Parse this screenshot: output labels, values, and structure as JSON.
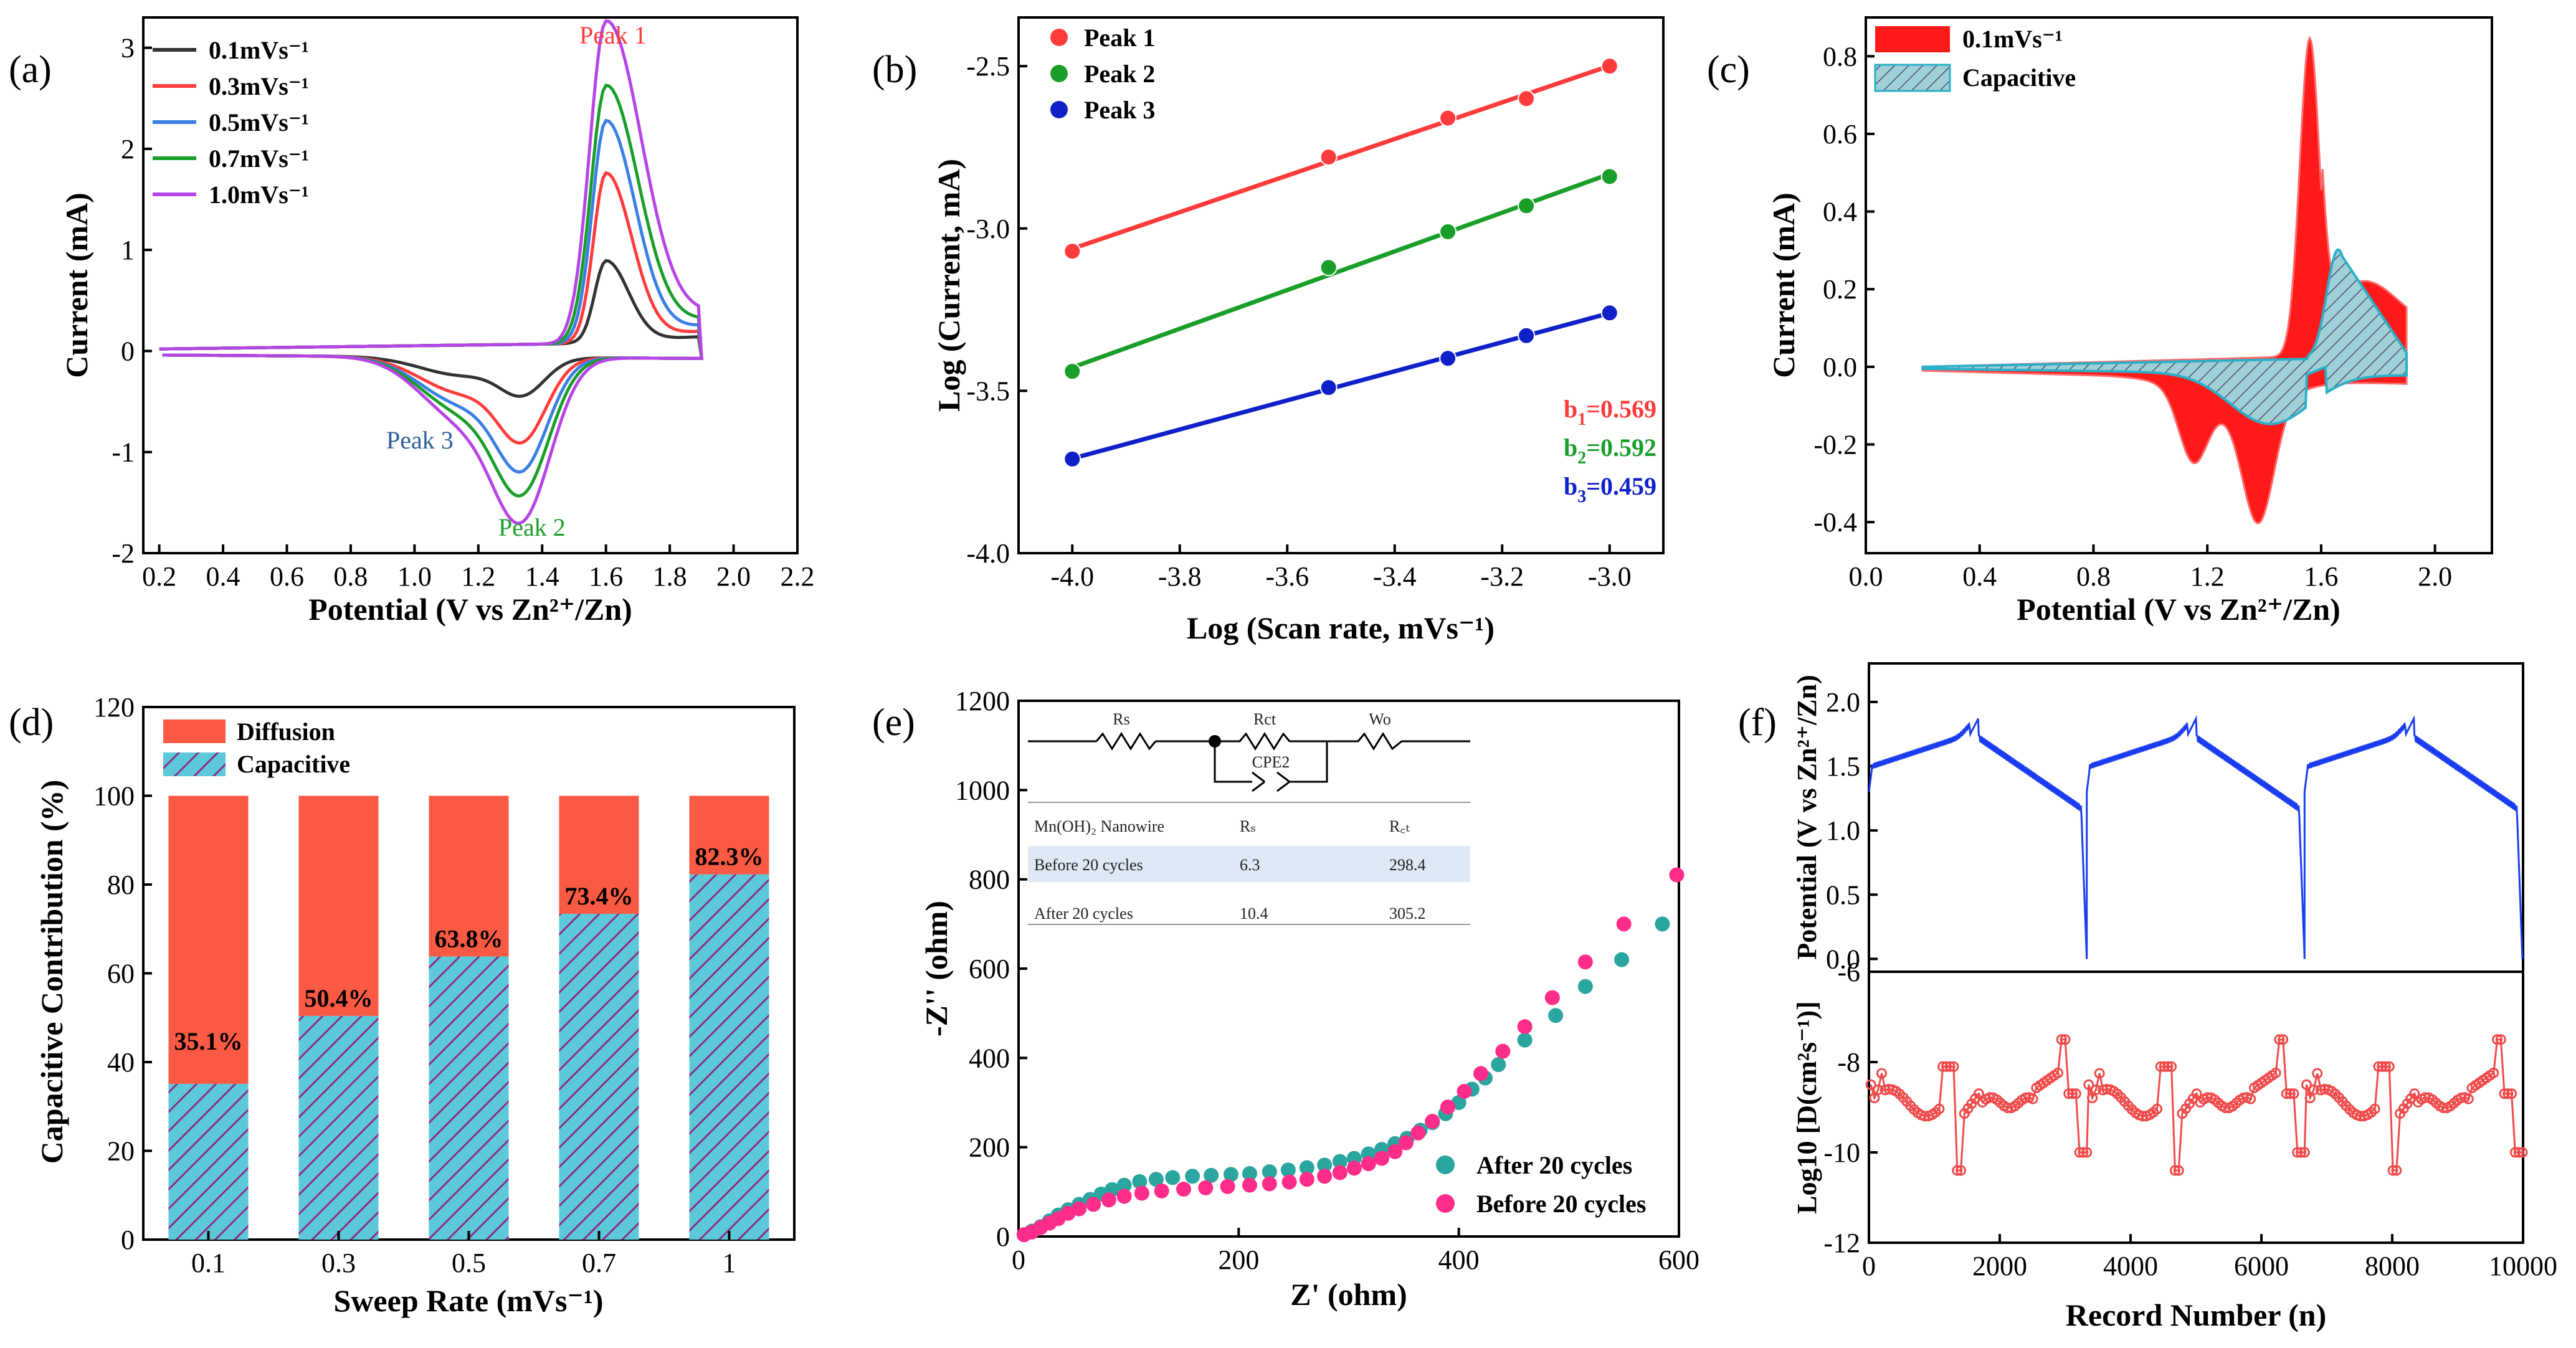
{
  "panel_labels": [
    "(a)",
    "(b)",
    "(c)",
    "(d)",
    "(e)",
    "(f)"
  ],
  "colors": {
    "red": "#ff3b3b",
    "green": "#1a9e2a",
    "blue": "#1020c8",
    "teal": "#2aa5a0",
    "pink": "#ff2d8a",
    "purple": "#b545e6",
    "sky": "#3a7fe6",
    "black": "#333333",
    "bar_red": "#fa5a43",
    "bar_cyan": "#5cc8d8",
    "line_blue": "#1a3cf0"
  },
  "chart_data": [
    {
      "panel": "a",
      "type": "line",
      "xlabel": "Potential (V vs Zn²⁺/Zn)",
      "ylabel": "Current (mA)",
      "xlim": [
        0.15,
        2.2
      ],
      "ylim": [
        -2,
        3.3
      ],
      "xticks": [
        0.2,
        0.4,
        0.6,
        0.8,
        1.0,
        1.2,
        1.4,
        1.6,
        1.8,
        2.0,
        2.2
      ],
      "xtick_labels": [
        "0.2",
        "0.4",
        "0.6",
        "0.8",
        "1.0",
        "1.2",
        "1.4",
        "1.6",
        "1.8",
        "2.0",
        "2.2"
      ],
      "yticks": [
        -2,
        -1,
        0,
        1,
        2,
        3
      ],
      "ytick_labels": [
        "-2",
        "-1",
        "0",
        "1",
        "2",
        "3"
      ],
      "annotations": [
        "Peak 1",
        "Peak 2",
        "Peak 3"
      ],
      "series": [
        {
          "name": "0.1mVs⁻¹",
          "ox_peak": 0.8,
          "red_peak": -0.32,
          "red2": -0.18
        },
        {
          "name": "0.3mVs⁻¹",
          "ox_peak": 1.65,
          "red_peak": -0.72,
          "red2": -0.35
        },
        {
          "name": "0.5mVs⁻¹",
          "ox_peak": 2.15,
          "red_peak": -0.97,
          "red2": -0.45
        },
        {
          "name": "0.7mVs⁻¹",
          "ox_peak": 2.48,
          "red_peak": -1.18,
          "red2": -0.52
        },
        {
          "name": "1.0mVs⁻¹",
          "ox_peak": 3.1,
          "red_peak": -1.42,
          "red2": -0.6
        }
      ]
    },
    {
      "panel": "b",
      "type": "scatter",
      "xlabel": "Log (Scan rate, mVs⁻¹)",
      "ylabel": "Log (Current, mA)",
      "xlim": [
        -4.1,
        -2.9
      ],
      "ylim": [
        -4.0,
        -2.35
      ],
      "xticks": [
        -4.0,
        -3.8,
        -3.6,
        -3.4,
        -3.2,
        -3.0
      ],
      "xtick_labels": [
        "-4.0",
        "-3.8",
        "-3.6",
        "-3.4",
        "-3.2",
        "-3.0"
      ],
      "yticks": [
        -4.0,
        -3.5,
        -3.0,
        -2.5
      ],
      "ytick_labels": [
        "-4.0",
        "-3.5",
        "-3.0",
        "-2.5"
      ],
      "x": [
        -4.0,
        -3.523,
        -3.301,
        -3.155,
        -3.0
      ],
      "series": [
        {
          "name": "Peak 1",
          "values": [
            -3.07,
            -2.78,
            -2.66,
            -2.6,
            -2.5
          ]
        },
        {
          "name": "Peak 2",
          "values": [
            -3.44,
            -3.12,
            -3.01,
            -2.93,
            -2.84
          ]
        },
        {
          "name": "Peak 3",
          "values": [
            -3.71,
            -3.49,
            -3.4,
            -3.33,
            -3.26
          ]
        }
      ],
      "annotations": [
        {
          "main": "b",
          "sub": "1",
          "value": "=0.569"
        },
        {
          "main": "b",
          "sub": "2",
          "value": "=0.592"
        },
        {
          "main": "b",
          "sub": "3",
          "value": "=0.459"
        }
      ]
    },
    {
      "panel": "c",
      "type": "area",
      "xlabel": "Potential (V vs Zn²⁺/Zn)",
      "ylabel": "Current (mA)",
      "xlim": [
        0.0,
        2.2
      ],
      "ylim": [
        -0.48,
        0.9
      ],
      "xticks": [
        0.0,
        0.4,
        0.8,
        1.2,
        1.6,
        2.0
      ],
      "xtick_labels": [
        "0.0",
        "0.4",
        "0.8",
        "1.2",
        "1.6",
        "2.0"
      ],
      "yticks": [
        -0.4,
        -0.2,
        0.0,
        0.2,
        0.4,
        0.6,
        0.8
      ],
      "ytick_labels": [
        "-0.4",
        "-0.2",
        "0.0",
        "0.2",
        "0.4",
        "0.6",
        "0.8"
      ],
      "legend": [
        "0.1mVs⁻¹",
        "Capacitive"
      ]
    },
    {
      "panel": "d",
      "type": "bar",
      "xlabel": "Sweep Rate (mVs⁻¹)",
      "ylabel": "Capacitive Contribution (%)",
      "categories": [
        "0.1",
        "0.3",
        "0.5",
        "0.7",
        "1"
      ],
      "ylim": [
        0,
        120
      ],
      "yticks": [
        0,
        20,
        40,
        60,
        80,
        100,
        120
      ],
      "ytick_labels": [
        "0",
        "20",
        "40",
        "60",
        "80",
        "100",
        "120"
      ],
      "series": [
        {
          "name": "Capacitive",
          "values": [
            35.1,
            50.4,
            63.8,
            73.4,
            82.3
          ]
        },
        {
          "name": "Diffusion",
          "values": [
            64.9,
            49.6,
            36.2,
            26.6,
            17.7
          ]
        }
      ],
      "labels": [
        "35.1%",
        "50.4%",
        "63.8%",
        "73.4%",
        "82.3%"
      ],
      "legend": [
        "Diffusion",
        "Capacitive"
      ]
    },
    {
      "panel": "e",
      "type": "scatter",
      "xlabel": "Z' (ohm)",
      "ylabel": "-Z'' (ohm)",
      "xlim": [
        0,
        600
      ],
      "ylim": [
        0,
        1200
      ],
      "xticks": [
        0,
        200,
        400,
        600
      ],
      "xtick_labels": [
        "0",
        "200",
        "400",
        "600"
      ],
      "yticks": [
        0,
        200,
        400,
        600,
        800,
        1000,
        1200
      ],
      "ytick_labels": [
        "0",
        "200",
        "400",
        "600",
        "800",
        "1000",
        "1200"
      ],
      "series": [
        {
          "name": "After 20 cycles",
          "x": [
            5,
            12,
            20,
            28,
            36,
            45,
            55,
            65,
            75,
            85,
            96,
            110,
            125,
            140,
            158,
            175,
            193,
            210,
            228,
            245,
            262,
            278,
            292,
            305,
            318,
            330,
            342,
            353,
            365,
            376,
            388,
            400,
            412,
            424,
            436,
            460,
            488,
            515,
            548,
            585
          ],
          "y": [
            4,
            12,
            22,
            35,
            48,
            60,
            72,
            83,
            95,
            105,
            115,
            123,
            128,
            132,
            135,
            137,
            139,
            141,
            145,
            149,
            154,
            160,
            168,
            175,
            185,
            195,
            208,
            220,
            238,
            255,
            275,
            300,
            330,
            355,
            385,
            440,
            495,
            560,
            620,
            700
          ]
        },
        {
          "name": "Before 20 cycles",
          "x": [
            5,
            12,
            20,
            28,
            36,
            45,
            55,
            68,
            82,
            96,
            112,
            130,
            150,
            170,
            190,
            210,
            228,
            246,
            262,
            278,
            292,
            305,
            318,
            330,
            342,
            352,
            363,
            376,
            390,
            405,
            420,
            440,
            460,
            485,
            515,
            550,
            598
          ],
          "y": [
            4,
            10,
            20,
            30,
            40,
            52,
            62,
            72,
            82,
            90,
            97,
            102,
            106,
            109,
            112,
            115,
            118,
            122,
            128,
            135,
            143,
            153,
            163,
            175,
            190,
            210,
            232,
            258,
            290,
            325,
            365,
            415,
            470,
            535,
            615,
            700,
            810
          ]
        }
      ],
      "inset": {
        "circuit_labels": [
          "Rs",
          "Rct",
          "Wo",
          "CPE2"
        ],
        "table_headers": [
          "Mn(OH)₂ Nanowire",
          "Rₛ",
          "R꜀ₜ"
        ],
        "table_rows": [
          [
            "Before 20 cycles",
            "6.3",
            "298.4"
          ],
          [
            "After 20 cycles",
            "10.4",
            "305.2"
          ]
        ]
      }
    },
    {
      "panel": "f",
      "type": "line",
      "xlabel": "Record Number (n)",
      "ylabel_top": "Potential (V vs Zn²⁺/Zn)",
      "ylabel_bottom": "Log10 [D(cm²s⁻¹)]",
      "xlim": [
        0,
        10000
      ],
      "xticks": [
        0,
        2000,
        4000,
        6000,
        8000,
        10000
      ],
      "xtick_labels": [
        "0",
        "2000",
        "4000",
        "6000",
        "8000",
        "10000"
      ],
      "top_ylim": [
        -0.1,
        2.3
      ],
      "top_yticks": [
        0.0,
        0.5,
        1.0,
        1.5,
        2.0
      ],
      "top_ytick_labels": [
        "0.0",
        "0.5",
        "1.0",
        "1.5",
        "2.0"
      ],
      "bottom_ylim": [
        -12,
        -6
      ],
      "bottom_yticks": [
        -12,
        -10,
        -8,
        -6
      ],
      "bottom_ytick_labels": [
        "-12",
        "-10",
        "-8",
        "-6"
      ],
      "cycles": 3,
      "cycle_length": 3330
    }
  ]
}
